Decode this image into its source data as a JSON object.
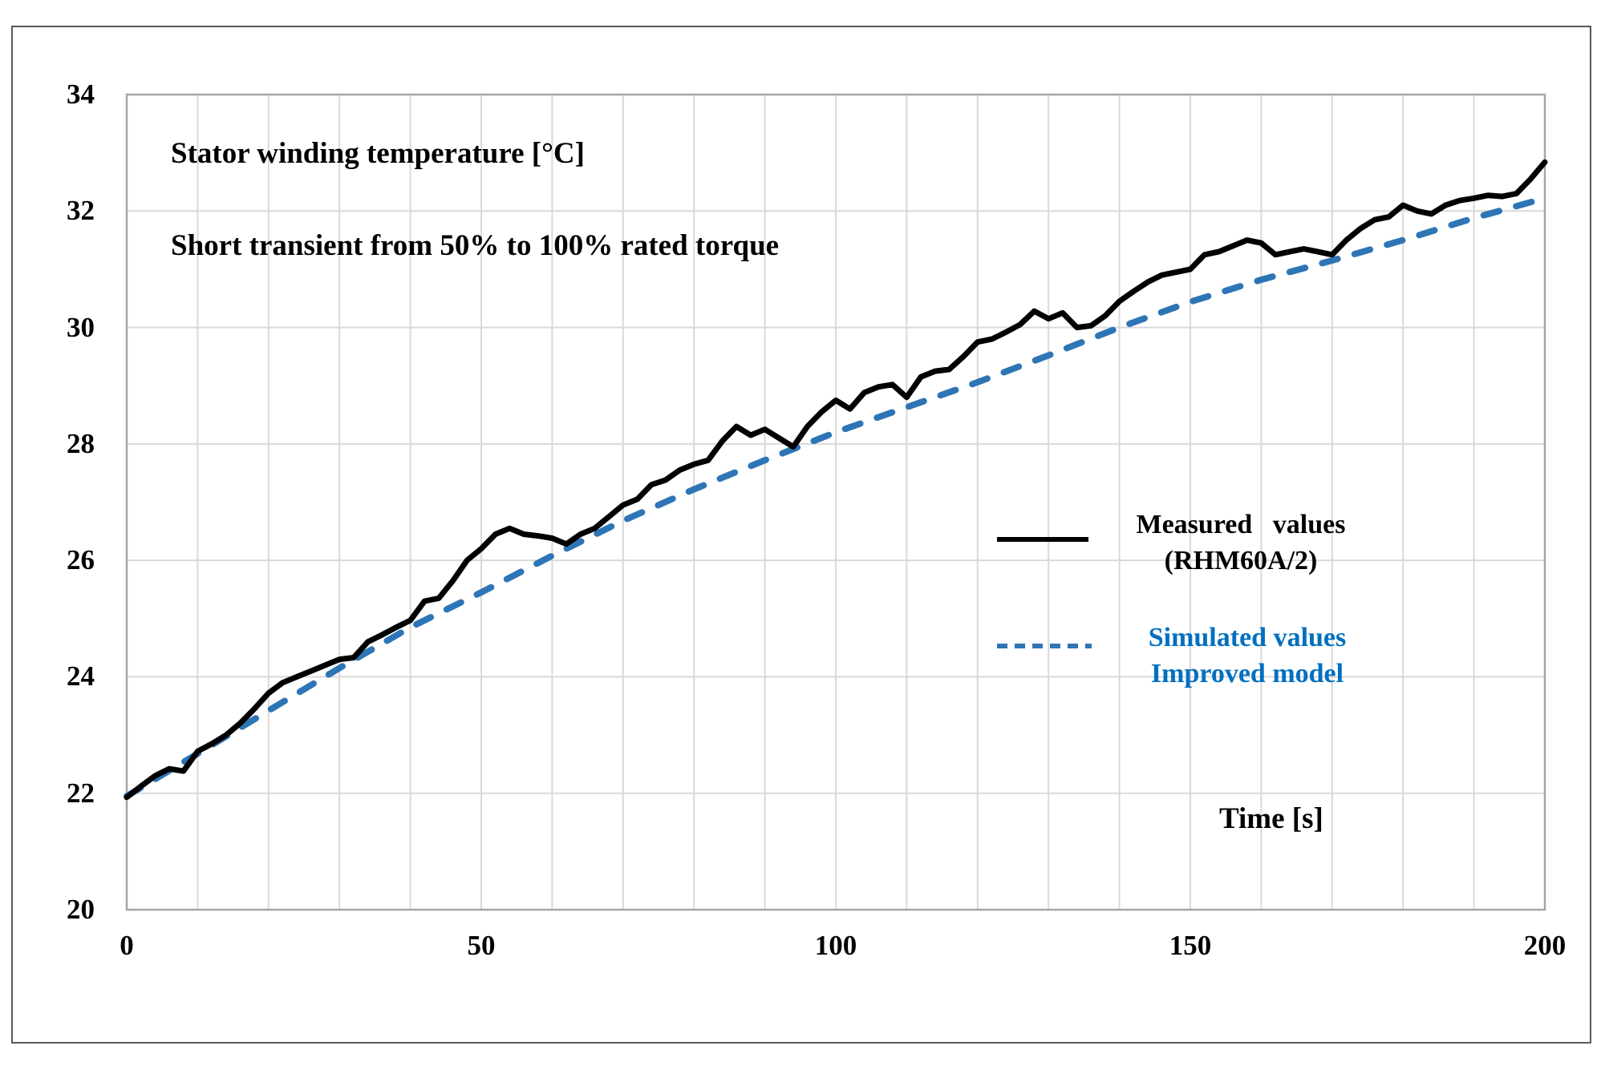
{
  "chart_data": {
    "type": "line",
    "title": "Stator winding temperature [°C]",
    "subtitle": "Short transient from 50% to 100% rated torque",
    "xlabel": "Time [s]",
    "ylabel": "Stator winding temperature [°C]",
    "xlim": [
      0,
      200
    ],
    "ylim": [
      20,
      34
    ],
    "x_ticks": [
      0,
      50,
      100,
      150,
      200
    ],
    "x_grid_step": 10,
    "y_ticks": [
      20,
      22,
      24,
      26,
      28,
      30,
      32,
      34
    ],
    "grid": "on",
    "legend_position": "right-middle",
    "colors": {
      "measured_line": "#000000",
      "simulated_line": "#2e75b6",
      "simulated_legend_text": "#0070c0",
      "grid": "#d9d9d9",
      "plot_border": "#a6a6a6",
      "figure_frame": "#595959",
      "background": "#ffffff"
    },
    "series": [
      {
        "name": "Measured values (RHM60A/2)",
        "color": "#000000",
        "style": "solid",
        "x_start": 0,
        "x_step": 2,
        "values": [
          21.93,
          22.12,
          22.3,
          22.42,
          22.38,
          22.72,
          22.85,
          23.0,
          23.2,
          23.45,
          23.72,
          23.9,
          24.0,
          24.1,
          24.2,
          24.3,
          24.33,
          24.6,
          24.72,
          24.85,
          24.97,
          25.3,
          25.35,
          25.65,
          26.0,
          26.2,
          26.45,
          26.55,
          26.45,
          26.42,
          26.38,
          26.28,
          26.45,
          26.55,
          26.75,
          26.95,
          27.05,
          27.3,
          27.38,
          27.55,
          27.65,
          27.72,
          28.05,
          28.3,
          28.15,
          28.25,
          28.1,
          27.95,
          28.3,
          28.55,
          28.75,
          28.6,
          28.88,
          28.98,
          29.02,
          28.8,
          29.15,
          29.25,
          29.28,
          29.5,
          29.75,
          29.8,
          29.92,
          30.05,
          30.28,
          30.15,
          30.25,
          30.0,
          30.03,
          30.2,
          30.45,
          30.62,
          30.78,
          30.9,
          30.95,
          31.0,
          31.25,
          31.3,
          31.4,
          31.5,
          31.45,
          31.25,
          31.3,
          31.35,
          31.3,
          31.25,
          31.5,
          31.7,
          31.85,
          31.9,
          32.1,
          32.0,
          31.95,
          32.1,
          32.18,
          32.22,
          32.27,
          32.25,
          32.3,
          32.55,
          32.84
        ]
      },
      {
        "name": "Simulated values Improved model",
        "color": "#2e75b6",
        "style": "dashed",
        "x_start": 0,
        "x_step": 10,
        "values": [
          21.95,
          22.68,
          23.42,
          24.15,
          24.85,
          25.45,
          26.08,
          26.68,
          27.22,
          27.72,
          28.2,
          28.63,
          29.06,
          29.52,
          30.0,
          30.44,
          30.82,
          31.15,
          31.5,
          31.88,
          32.22
        ]
      }
    ],
    "legend": {
      "measured_label_line1": "Measured   values",
      "measured_label_line2": "(RHM60A/2)",
      "simulated_label_line1": "Simulated values",
      "simulated_label_line2": "Improved model"
    }
  }
}
